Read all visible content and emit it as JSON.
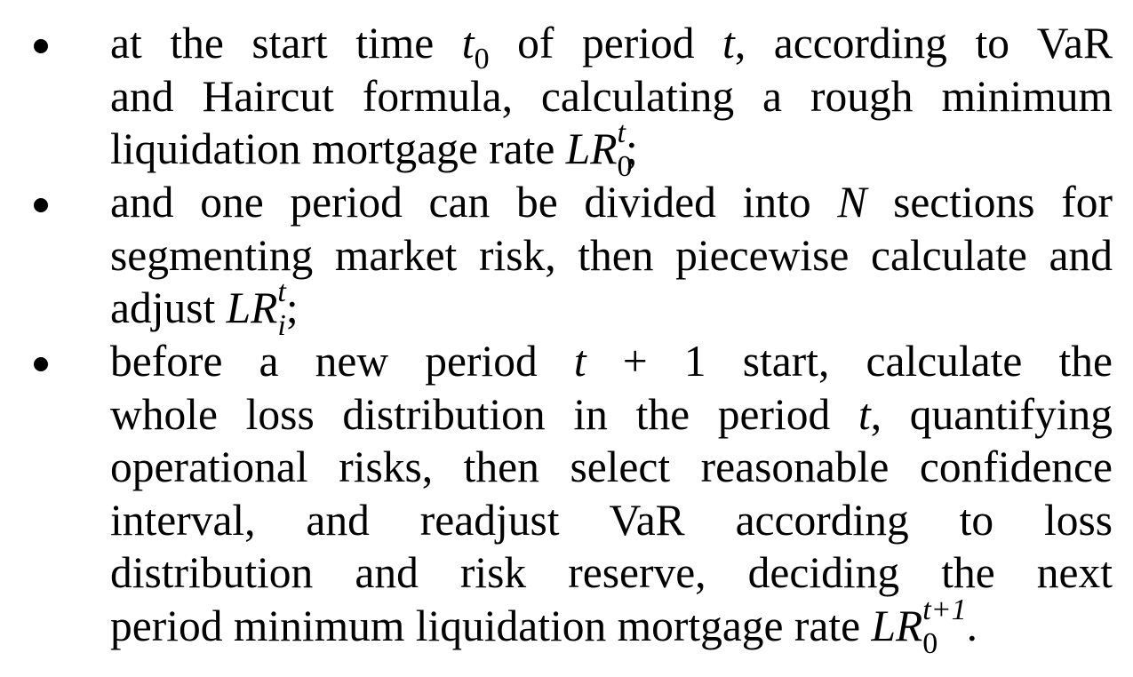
{
  "bullets": [
    {
      "lines": [
        [
          {
            "t": "at the start time "
          },
          {
            "m": "t",
            "sub": "0"
          },
          {
            "t": " of period "
          },
          {
            "m": "t"
          },
          {
            "t": ", according to VaR"
          }
        ],
        [
          {
            "t": "and Haircut formula, calculating a rough minimum"
          }
        ],
        [
          {
            "t": "liquidation mortgage rate "
          },
          {
            "m": "LR",
            "sup": "t",
            "sub": "0"
          },
          {
            "t": ";"
          }
        ]
      ]
    },
    {
      "lines": [
        [
          {
            "t": "and one period can be divided into "
          },
          {
            "m": "N"
          },
          {
            "t": " sections for"
          }
        ],
        [
          {
            "t": "segmenting market risk, then piecewise calculate and"
          }
        ],
        [
          {
            "t": "adjust "
          },
          {
            "m": "LR",
            "sup": "t",
            "sub": "i"
          },
          {
            "t": ";"
          }
        ]
      ]
    },
    {
      "lines": [
        [
          {
            "t": "before a new period "
          },
          {
            "m": "t",
            "tail": " + 1"
          },
          {
            "t": " start, calculate the"
          }
        ],
        [
          {
            "t": "whole loss distribution in the period "
          },
          {
            "m": "t"
          },
          {
            "t": ", quantifying"
          }
        ],
        [
          {
            "t": "operational risks, then select reasonable confidence"
          }
        ],
        [
          {
            "t": "interval, and readjust VaR according to loss"
          }
        ],
        [
          {
            "t": "distribution and risk reserve, deciding the next"
          }
        ],
        [
          {
            "t": "period minimum liquidation mortgage rate "
          },
          {
            "m": "LR",
            "sup": "t+1",
            "sub": "0"
          },
          {
            "t": "."
          }
        ]
      ]
    }
  ]
}
